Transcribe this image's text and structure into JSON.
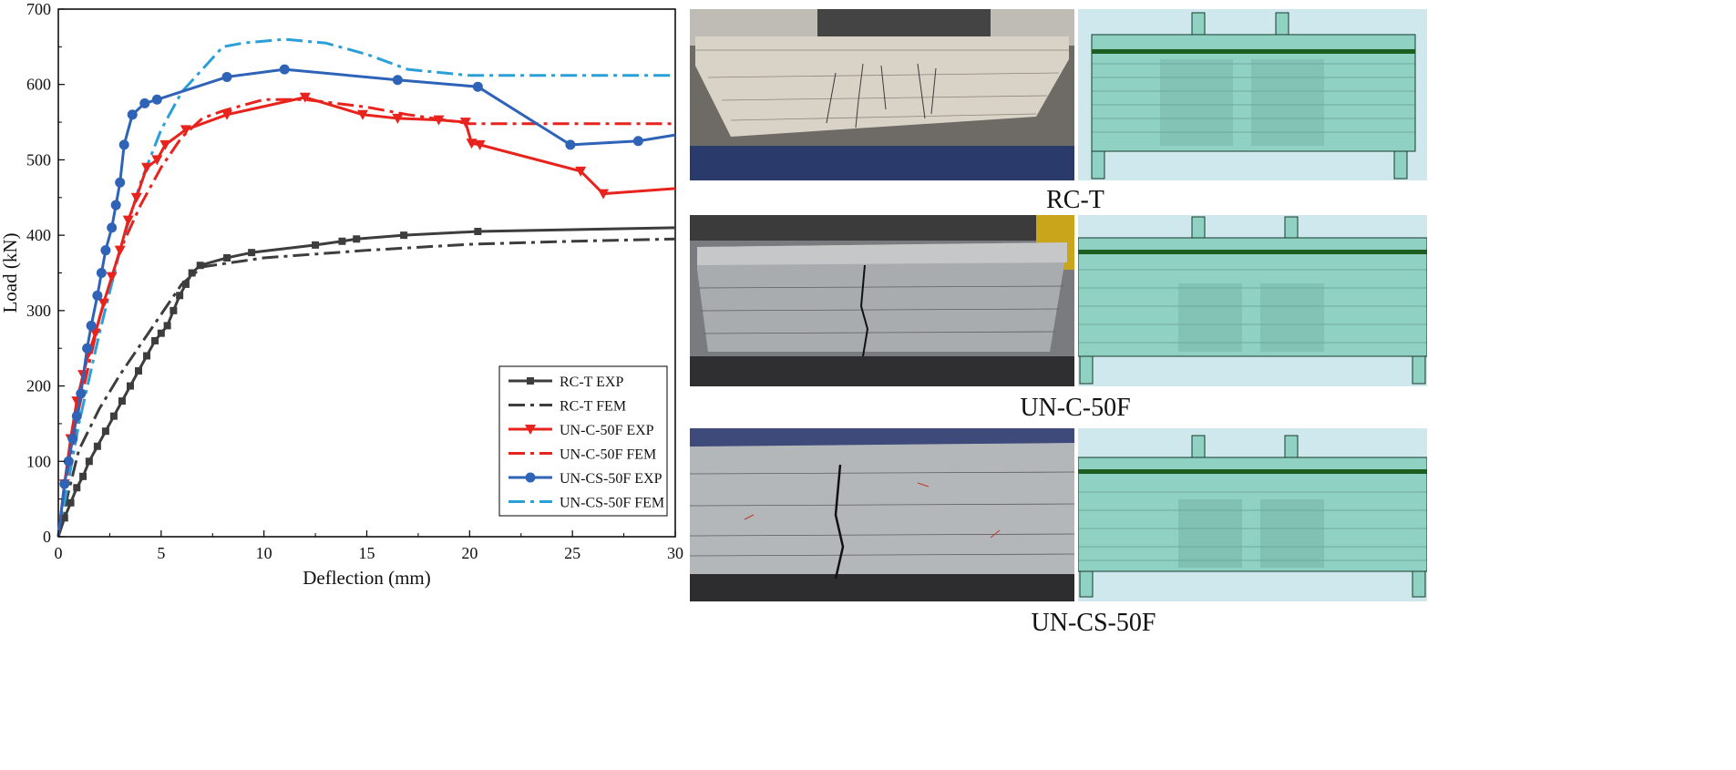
{
  "chart_data": {
    "type": "line",
    "xlabel": "Deflection (mm)",
    "ylabel": "Load (kN)",
    "xlim": [
      0,
      30
    ],
    "ylim": [
      0,
      700
    ],
    "xticks": [
      "0",
      "5",
      "10",
      "15",
      "20",
      "25",
      "30"
    ],
    "yticks": [
      "0",
      "100",
      "200",
      "300",
      "400",
      "500",
      "600",
      "700"
    ],
    "legend_position": "bottom-right",
    "series": [
      {
        "name": "RC-T EXP",
        "color": "#3d3d3d",
        "style": "solid",
        "marker": "square",
        "x": [
          0,
          0.3,
          0.6,
          0.9,
          1.2,
          1.5,
          1.9,
          2.3,
          2.7,
          3.1,
          3.5,
          3.9,
          4.3,
          4.7,
          5.0,
          5.3,
          5.6,
          5.9,
          6.2,
          6.5,
          6.9,
          8.2,
          9.4,
          12.5,
          13.8,
          14.5,
          16.8,
          20.4,
          30.0
        ],
        "y": [
          0,
          25,
          45,
          65,
          80,
          100,
          120,
          140,
          160,
          180,
          200,
          220,
          240,
          260,
          270,
          280,
          300,
          320,
          335,
          350,
          360,
          370,
          377,
          387,
          392,
          395,
          400,
          405,
          410
        ]
      },
      {
        "name": "RC-T FEM",
        "color": "#3d3d3d",
        "style": "dashdot",
        "marker": "none",
        "x": [
          0,
          0.5,
          1,
          2,
          3,
          4,
          5,
          6,
          7,
          10,
          15,
          20,
          25,
          30
        ],
        "y": [
          0,
          60,
          115,
          170,
          215,
          255,
          295,
          335,
          358,
          370,
          380,
          388,
          392,
          395
        ]
      },
      {
        "name": "UN-C-50F EXP",
        "color": "#e8221c",
        "style": "solid",
        "marker": "triangle-down",
        "x": [
          0,
          0.3,
          0.6,
          0.9,
          1.2,
          1.5,
          1.8,
          2.2,
          2.6,
          3.0,
          3.4,
          3.8,
          4.3,
          4.8,
          5.2,
          6.2,
          8.2,
          12.0,
          14.8,
          16.5,
          18.5,
          19.8,
          20.1,
          20.5,
          25.4,
          26.5,
          30.0
        ],
        "y": [
          0,
          70,
          130,
          180,
          215,
          245,
          270,
          310,
          345,
          380,
          420,
          450,
          490,
          500,
          520,
          540,
          560,
          583,
          560,
          555,
          553,
          550,
          522,
          520,
          485,
          455,
          462
        ]
      },
      {
        "name": "UN-C-50F FEM",
        "color": "#e8221c",
        "style": "dashdot",
        "marker": "none",
        "x": [
          0,
          1,
          2,
          3,
          4,
          5,
          6,
          7,
          8,
          10,
          12,
          15,
          17,
          20,
          25,
          30
        ],
        "y": [
          0,
          170,
          290,
          380,
          440,
          490,
          530,
          555,
          565,
          580,
          580,
          570,
          560,
          548,
          548,
          548
        ]
      },
      {
        "name": "UN-CS-50F EXP",
        "color": "#2e63b8",
        "style": "solid",
        "marker": "circle",
        "x": [
          0,
          0.3,
          0.5,
          0.7,
          0.9,
          1.1,
          1.4,
          1.6,
          1.9,
          2.1,
          2.3,
          2.6,
          2.8,
          3.0,
          3.2,
          3.6,
          4.2,
          4.8,
          8.2,
          11.0,
          16.5,
          20.4,
          24.9,
          28.2,
          30.0
        ],
        "y": [
          0,
          70,
          100,
          130,
          160,
          190,
          250,
          280,
          320,
          350,
          380,
          410,
          440,
          470,
          520,
          560,
          575,
          580,
          610,
          620,
          606,
          597,
          520,
          525,
          533
        ]
      },
      {
        "name": "UN-CS-50F FEM",
        "color": "#2a9fd8",
        "style": "dashdot",
        "marker": "none",
        "x": [
          0,
          1,
          2,
          3,
          4,
          5,
          6,
          7,
          8,
          9,
          11,
          13,
          15,
          17,
          20,
          25,
          30
        ],
        "y": [
          0,
          150,
          270,
          380,
          470,
          540,
          590,
          620,
          650,
          655,
          660,
          655,
          640,
          620,
          612,
          612,
          612
        ]
      }
    ]
  },
  "figures": [
    {
      "caption": "RC-T"
    },
    {
      "caption": "UN-C-50F"
    },
    {
      "caption": "UN-CS-50F"
    }
  ]
}
